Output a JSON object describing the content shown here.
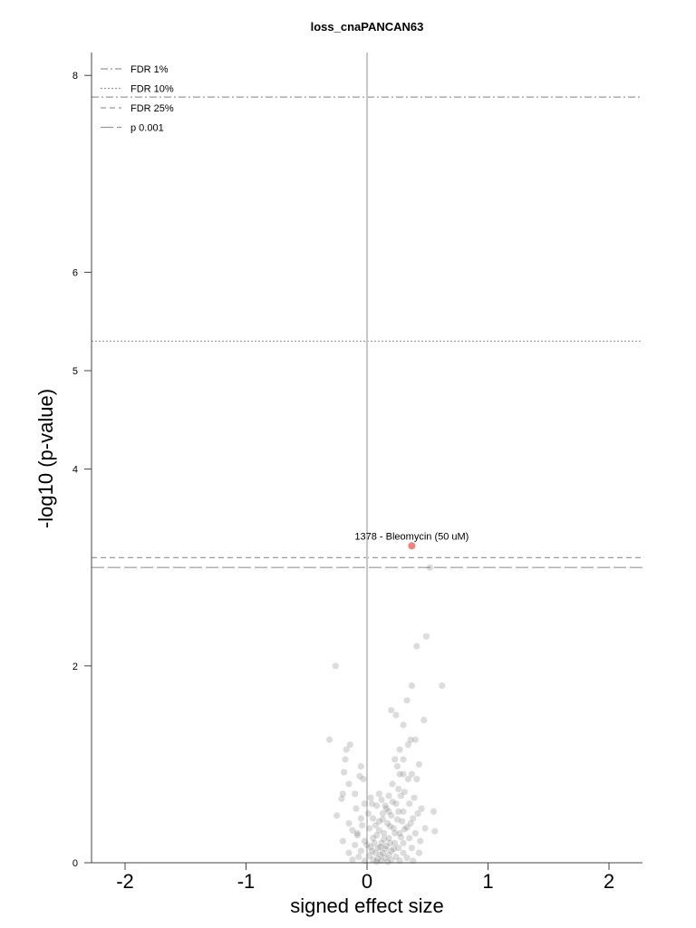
{
  "chart_data": {
    "type": "scatter",
    "title": "loss_cnaPANCAN63",
    "xlabel": "signed effect size",
    "ylabel": "-log10 (p-value)",
    "xlim": [
      -2.28,
      2.28
    ],
    "ylim": [
      0,
      8.25
    ],
    "xticks": [
      -2,
      -1,
      0,
      1,
      2
    ],
    "xtick_labels": [
      "-2",
      "-1",
      "0",
      "1",
      "2"
    ],
    "yticks": [
      0,
      2,
      4,
      5,
      6,
      8
    ],
    "ytick_labels": [
      "0",
      "2",
      "4",
      "5",
      "6",
      "8"
    ],
    "grid": false,
    "legend": {
      "placement": "top-left",
      "entries": [
        {
          "label": "FDR 1%",
          "style": "dashdot"
        },
        {
          "label": "FDR 10%",
          "style": "dotted"
        },
        {
          "label": "FDR 25%",
          "style": "dashed"
        },
        {
          "label": "p 0.001",
          "style": "longdash"
        }
      ]
    },
    "threshold_lines": [
      {
        "name": "FDR 1%",
        "y": 7.78,
        "style": "dashdot"
      },
      {
        "name": "FDR 10%",
        "y": 5.3,
        "style": "dotted"
      },
      {
        "name": "FDR 25%",
        "y": 3.1,
        "style": "dashed"
      },
      {
        "name": "p 0.001",
        "y": 3.0,
        "style": "longdash"
      }
    ],
    "vertical_line": {
      "x": 0
    },
    "highlighted_point": {
      "x": 0.37,
      "y": 3.22,
      "label": "1378 - Bleomycin (50 uM)",
      "color": "#f08080"
    },
    "points": [
      [
        0.52,
        3.0
      ],
      [
        0.49,
        2.3
      ],
      [
        0.41,
        2.2
      ],
      [
        -0.26,
        2.0
      ],
      [
        0.62,
        1.8
      ],
      [
        0.37,
        1.8
      ],
      [
        0.33,
        1.65
      ],
      [
        0.2,
        1.55
      ],
      [
        0.24,
        1.5
      ],
      [
        0.47,
        1.45
      ],
      [
        0.3,
        1.4
      ],
      [
        0.36,
        1.25
      ],
      [
        0.4,
        1.25
      ],
      [
        -0.31,
        1.25
      ],
      [
        0.34,
        1.2
      ],
      [
        0.27,
        1.15
      ],
      [
        -0.14,
        1.2
      ],
      [
        -0.17,
        1.15
      ],
      [
        0.3,
        1.05
      ],
      [
        0.23,
        1.05
      ],
      [
        -0.18,
        1.05
      ],
      [
        0.43,
        1.0
      ],
      [
        0.25,
        0.98
      ],
      [
        -0.05,
        0.98
      ],
      [
        0.27,
        0.9
      ],
      [
        -0.19,
        0.92
      ],
      [
        -0.06,
        0.88
      ],
      [
        0.3,
        0.9
      ],
      [
        0.37,
        0.9
      ],
      [
        0.34,
        0.85
      ],
      [
        -0.03,
        0.85
      ],
      [
        -0.15,
        0.8
      ],
      [
        0.21,
        0.8
      ],
      [
        0.41,
        0.85
      ],
      [
        0.26,
        0.75
      ],
      [
        0.31,
        0.72
      ],
      [
        0.1,
        0.7
      ],
      [
        -0.2,
        0.7
      ],
      [
        -0.1,
        0.7
      ],
      [
        0.18,
        0.68
      ],
      [
        0.03,
        0.66
      ],
      [
        -0.21,
        0.65
      ],
      [
        0.35,
        0.6
      ],
      [
        0.24,
        0.6
      ],
      [
        -0.02,
        0.6
      ],
      [
        0.08,
        0.58
      ],
      [
        0.15,
        0.58
      ],
      [
        0.45,
        0.55
      ],
      [
        -0.09,
        0.55
      ],
      [
        0.3,
        0.52
      ],
      [
        0.55,
        0.52
      ],
      [
        0.42,
        0.5
      ],
      [
        0.13,
        0.5
      ],
      [
        0.2,
        0.48
      ],
      [
        0.38,
        0.45
      ],
      [
        -0.25,
        0.48
      ],
      [
        -0.05,
        0.45
      ],
      [
        0.05,
        0.45
      ],
      [
        0.29,
        0.42
      ],
      [
        0.1,
        0.42
      ],
      [
        0.17,
        0.4
      ],
      [
        -0.15,
        0.4
      ],
      [
        0.48,
        0.35
      ],
      [
        0.33,
        0.36
      ],
      [
        0.22,
        0.35
      ],
      [
        0.02,
        0.35
      ],
      [
        -0.12,
        0.33
      ],
      [
        0.4,
        0.3
      ],
      [
        0.27,
        0.3
      ],
      [
        0.14,
        0.3
      ],
      [
        0.08,
        0.28
      ],
      [
        -0.08,
        0.28
      ],
      [
        0.56,
        0.32
      ],
      [
        0.35,
        0.25
      ],
      [
        0.18,
        0.25
      ],
      [
        0.05,
        0.25
      ],
      [
        -0.02,
        0.22
      ],
      [
        -0.2,
        0.22
      ],
      [
        0.44,
        0.22
      ],
      [
        0.3,
        0.2
      ],
      [
        0.23,
        0.2
      ],
      [
        0.12,
        0.2
      ],
      [
        0.0,
        0.18
      ],
      [
        -0.1,
        0.18
      ],
      [
        0.16,
        0.17
      ],
      [
        0.09,
        0.15
      ],
      [
        0.26,
        0.15
      ],
      [
        0.37,
        0.15
      ],
      [
        0.04,
        0.12
      ],
      [
        -0.05,
        0.12
      ],
      [
        0.2,
        0.12
      ],
      [
        0.13,
        0.1
      ],
      [
        0.07,
        0.1
      ],
      [
        0.3,
        0.1
      ],
      [
        0.43,
        0.1
      ],
      [
        -0.15,
        0.1
      ],
      [
        0.11,
        0.08
      ],
      [
        0.18,
        0.08
      ],
      [
        0.02,
        0.07
      ],
      [
        0.24,
        0.06
      ],
      [
        -0.07,
        0.06
      ],
      [
        0.15,
        0.05
      ],
      [
        0.09,
        0.04
      ],
      [
        0.33,
        0.05
      ],
      [
        0.05,
        0.03
      ],
      [
        0.2,
        0.03
      ],
      [
        0.12,
        0.02
      ],
      [
        -0.02,
        0.02
      ],
      [
        0.27,
        0.02
      ],
      [
        0.17,
        0.01
      ],
      [
        0.08,
        0.01
      ],
      [
        0.38,
        0.02
      ],
      [
        -0.12,
        0.03
      ],
      [
        0.22,
        0.14
      ],
      [
        0.06,
        0.2
      ],
      [
        0.14,
        0.24
      ],
      [
        0.28,
        0.26
      ],
      [
        0.1,
        0.33
      ],
      [
        0.19,
        0.37
      ],
      [
        0.25,
        0.44
      ],
      [
        0.36,
        0.4
      ],
      [
        -0.04,
        0.38
      ],
      [
        0.01,
        0.5
      ],
      [
        0.16,
        0.55
      ],
      [
        0.21,
        0.62
      ],
      [
        0.39,
        0.66
      ],
      [
        0.28,
        0.68
      ],
      [
        0.12,
        0.64
      ],
      [
        -0.08,
        0.3
      ],
      [
        0.07,
        0.38
      ],
      [
        0.23,
        0.3
      ],
      [
        0.31,
        0.34
      ],
      [
        0.13,
        0.44
      ],
      [
        0.04,
        0.6
      ],
      [
        0.18,
        0.52
      ],
      [
        0.26,
        0.52
      ],
      [
        0.15,
        0.14
      ],
      [
        0.11,
        0.16
      ],
      [
        0.19,
        0.2
      ],
      [
        0.03,
        0.16
      ]
    ]
  }
}
